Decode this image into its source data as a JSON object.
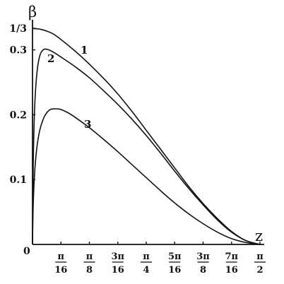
{
  "chart_data": {
    "type": "line",
    "xlabel": "z",
    "ylabel": "β",
    "xlim": [
      0,
      1.5708
    ],
    "ylim": [
      0,
      0.3333
    ],
    "x_ticks": [
      {
        "value": 0.19635,
        "num": "π",
        "den": "16"
      },
      {
        "value": 0.3927,
        "num": "π",
        "den": "8"
      },
      {
        "value": 0.58905,
        "num": "3π",
        "den": "16"
      },
      {
        "value": 0.7854,
        "num": "π",
        "den": "4"
      },
      {
        "value": 0.98175,
        "num": "5π",
        "den": "16"
      },
      {
        "value": 1.1781,
        "num": "3π",
        "den": "8"
      },
      {
        "value": 1.37445,
        "num": "7π",
        "den": "16"
      },
      {
        "value": 1.5708,
        "num": "π",
        "den": "2"
      }
    ],
    "x_origin_label": "0",
    "y_ticks": [
      {
        "value": 0.1,
        "label": "0.1"
      },
      {
        "value": 0.2,
        "label": "0.2"
      },
      {
        "value": 0.3,
        "label": "0.3"
      },
      {
        "value": 0.3333,
        "label": "1/3"
      }
    ],
    "series": [
      {
        "label": "1",
        "x": [
          0,
          0.0491,
          0.0982,
          0.1473,
          0.1963,
          0.2945,
          0.3927,
          0.4909,
          0.589,
          0.6872,
          0.7854,
          0.8836,
          0.9817,
          1.0799,
          1.1781,
          1.2763,
          1.3744,
          1.4726,
          1.5708
        ],
        "y": [
          0.333,
          0.332,
          0.329,
          0.324,
          0.316,
          0.298,
          0.278,
          0.256,
          0.232,
          0.205,
          0.176,
          0.147,
          0.118,
          0.089,
          0.063,
          0.04,
          0.02,
          0.006,
          0
        ]
      },
      {
        "label": "2",
        "x": [
          0,
          0.0049,
          0.0147,
          0.0295,
          0.0491,
          0.0736,
          0.0982,
          0.1227,
          0.1473,
          0.1963,
          0.2945,
          0.3927,
          0.4909,
          0.589,
          0.6872,
          0.7854,
          0.8836,
          0.9817,
          1.0799,
          1.1781,
          1.2763,
          1.3744,
          1.4726,
          1.5708
        ],
        "y": [
          0,
          0.12,
          0.21,
          0.262,
          0.29,
          0.3,
          0.301,
          0.299,
          0.296,
          0.289,
          0.274,
          0.257,
          0.237,
          0.216,
          0.193,
          0.168,
          0.141,
          0.113,
          0.086,
          0.061,
          0.038,
          0.019,
          0.006,
          0
        ]
      },
      {
        "label": "3",
        "x": [
          0,
          0.0049,
          0.0147,
          0.0295,
          0.0491,
          0.0736,
          0.0982,
          0.1227,
          0.1473,
          0.1718,
          0.1963,
          0.2454,
          0.2945,
          0.3927,
          0.4909,
          0.589,
          0.6872,
          0.7854,
          0.8836,
          0.9817,
          1.0799,
          1.1781,
          1.2763,
          1.3744,
          1.4726,
          1.5708
        ],
        "y": [
          0,
          0.06,
          0.11,
          0.148,
          0.175,
          0.193,
          0.203,
          0.208,
          0.209,
          0.209,
          0.208,
          0.203,
          0.196,
          0.18,
          0.162,
          0.143,
          0.123,
          0.103,
          0.083,
          0.064,
          0.047,
          0.032,
          0.019,
          0.009,
          0.003,
          0
        ]
      }
    ],
    "grid": false,
    "legend": "inline curve labels"
  }
}
